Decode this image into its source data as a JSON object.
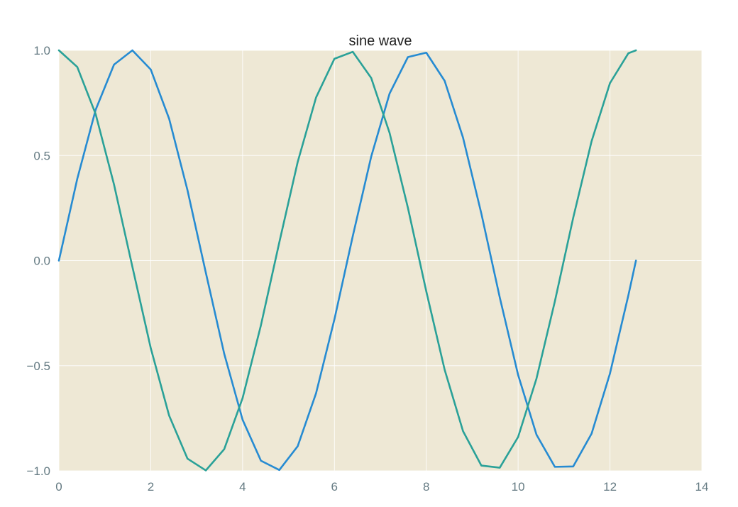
{
  "chart_data": {
    "type": "line",
    "title": "sine wave",
    "xlabel": "",
    "ylabel": "",
    "xlim": [
      0,
      14
    ],
    "ylim": [
      -1.0,
      1.0
    ],
    "x_ticks": [
      0,
      2,
      4,
      6,
      8,
      10,
      12,
      14
    ],
    "x_tick_labels": [
      "0",
      "2",
      "4",
      "6",
      "8",
      "10",
      "12",
      "14"
    ],
    "y_ticks": [
      1.0,
      0.5,
      0.0,
      -0.5,
      -1.0
    ],
    "y_tick_labels": [
      "1.0",
      "0.5",
      "0.0",
      "−0.5",
      "−1.0"
    ],
    "grid": true,
    "background_color": "#eee8d5",
    "x": [
      0.0,
      0.4,
      0.8,
      1.2,
      1.6,
      2.0,
      2.4,
      2.8,
      3.2,
      3.6,
      4.0,
      4.4,
      4.8,
      5.2,
      5.6,
      6.0,
      6.4,
      6.8,
      7.2,
      7.6,
      8.0,
      8.4,
      8.8,
      9.2,
      9.6,
      10.0,
      10.4,
      10.8,
      11.2,
      11.6,
      12.0,
      12.4,
      12.566
    ],
    "series": [
      {
        "color": "#268bd2",
        "values": [
          0.0,
          0.389,
          0.717,
          0.932,
          1.0,
          0.909,
          0.675,
          0.335,
          -0.058,
          -0.443,
          -0.757,
          -0.952,
          -0.996,
          -0.883,
          -0.631,
          -0.279,
          0.117,
          0.494,
          0.794,
          0.968,
          0.989,
          0.855,
          0.585,
          0.223,
          -0.175,
          -0.544,
          -0.828,
          -0.981,
          -0.979,
          -0.823,
          -0.537,
          -0.166,
          0.0
        ]
      },
      {
        "color": "#2aa198",
        "values": [
          1.0,
          0.921,
          0.697,
          0.362,
          -0.029,
          -0.416,
          -0.737,
          -0.942,
          -0.998,
          -0.897,
          -0.654,
          -0.307,
          0.087,
          0.469,
          0.776,
          0.96,
          0.993,
          0.869,
          0.608,
          0.251,
          -0.146,
          -0.519,
          -0.811,
          -0.975,
          -0.985,
          -0.839,
          -0.561,
          -0.194,
          0.204,
          0.568,
          0.844,
          0.986,
          1.0
        ]
      }
    ]
  }
}
